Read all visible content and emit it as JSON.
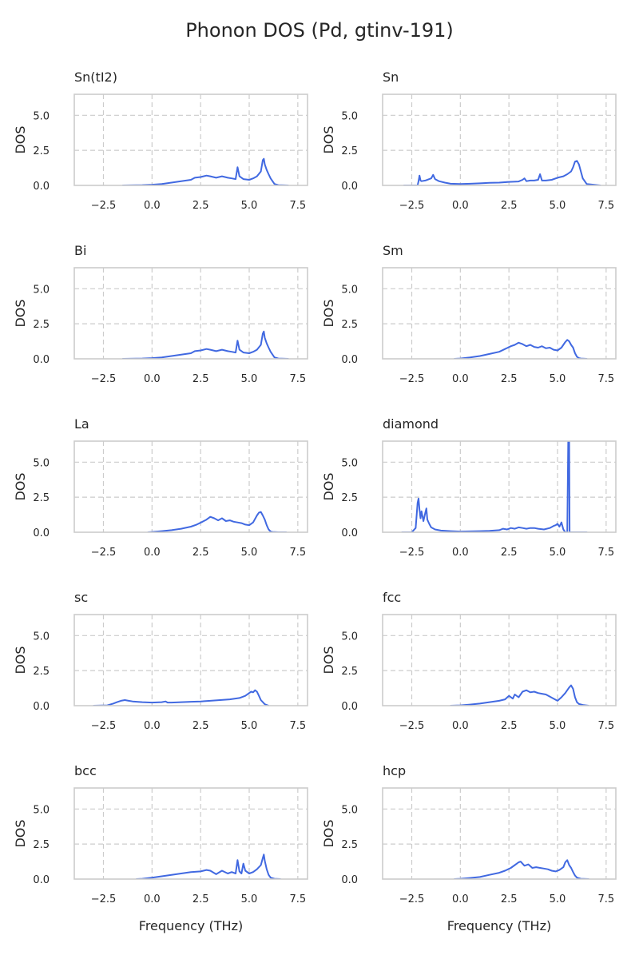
{
  "figure": {
    "title": "Phonon DOS (Pd, gtinv-191)"
  },
  "style": {
    "line_color": "#4169e1",
    "grid_color": "#cccccc",
    "frame_color": "#cccccc",
    "text_color": "#262626"
  },
  "chart_data": [
    {
      "type": "line",
      "title": "Sn(tI2)",
      "xlabel": "",
      "ylabel": "DOS",
      "xlim": [
        -4.0,
        8.0
      ],
      "ylim": [
        0,
        6.5
      ],
      "xticks": [
        -2.5,
        0.0,
        2.5,
        5.0,
        7.5
      ],
      "xtick_labels": [
        "−2.5",
        "0.0",
        "2.5",
        "5.0",
        "7.5"
      ],
      "yticks": [
        0.0,
        2.5,
        5.0
      ],
      "ytick_labels": [
        "0.0",
        "2.5",
        "5.0"
      ],
      "grid": true,
      "series": [
        {
          "x": [
            -1.5,
            -0.5,
            0,
            0.5,
            1,
            1.5,
            2,
            2.2,
            2.5,
            2.8,
            3,
            3.3,
            3.6,
            3.9,
            4.1,
            4.3,
            4.4,
            4.5,
            4.7,
            5,
            5.2,
            5.4,
            5.6,
            5.7,
            5.75,
            5.8,
            5.9,
            6,
            6.1,
            6.2,
            6.3,
            6.5,
            7
          ],
          "y": [
            0,
            0.02,
            0.05,
            0.1,
            0.2,
            0.3,
            0.4,
            0.55,
            0.6,
            0.7,
            0.65,
            0.55,
            0.65,
            0.55,
            0.5,
            0.45,
            1.3,
            0.65,
            0.45,
            0.4,
            0.5,
            0.65,
            1.0,
            1.8,
            1.9,
            1.5,
            1.1,
            0.8,
            0.5,
            0.3,
            0.1,
            0.02,
            0
          ]
        }
      ]
    },
    {
      "type": "line",
      "title": "Sn",
      "xlabel": "",
      "ylabel": "DOS",
      "xlim": [
        -4.0,
        8.0
      ],
      "ylim": [
        0,
        6.5
      ],
      "xticks": [
        -2.5,
        0.0,
        2.5,
        5.0,
        7.5
      ],
      "xtick_labels": [
        "−2.5",
        "0.0",
        "2.5",
        "5.0",
        "7.5"
      ],
      "yticks": [
        0.0,
        2.5,
        5.0
      ],
      "ytick_labels": [
        "0.0",
        "2.5",
        "5.0"
      ],
      "grid": true,
      "series": [
        {
          "x": [
            -2.9,
            -2.2,
            -2.15,
            -2.1,
            -2.05,
            -2,
            -1.8,
            -1.5,
            -1.4,
            -1.3,
            -1.1,
            -0.8,
            -0.5,
            0,
            0.5,
            1,
            1.5,
            2,
            2.5,
            3,
            3.2,
            3.3,
            3.4,
            3.6,
            3.8,
            4,
            4.1,
            4.2,
            4.4,
            4.7,
            5,
            5.3,
            5.5,
            5.7,
            5.8,
            5.9,
            6,
            6.1,
            6.2,
            6.3,
            6.5,
            7.2
          ],
          "y": [
            0,
            0,
            0.3,
            0.7,
            0.35,
            0.3,
            0.35,
            0.5,
            0.75,
            0.45,
            0.3,
            0.2,
            0.12,
            0.1,
            0.12,
            0.15,
            0.18,
            0.2,
            0.25,
            0.28,
            0.4,
            0.5,
            0.3,
            0.35,
            0.35,
            0.4,
            0.8,
            0.35,
            0.35,
            0.4,
            0.55,
            0.65,
            0.8,
            1.0,
            1.3,
            1.7,
            1.75,
            1.5,
            1.0,
            0.5,
            0.1,
            0
          ]
        }
      ]
    },
    {
      "type": "line",
      "title": "Bi",
      "xlabel": "",
      "ylabel": "DOS",
      "xlim": [
        -4.0,
        8.0
      ],
      "ylim": [
        0,
        6.5
      ],
      "xticks": [
        -2.5,
        0.0,
        2.5,
        5.0,
        7.5
      ],
      "xtick_labels": [
        "−2.5",
        "0.0",
        "2.5",
        "5.0",
        "7.5"
      ],
      "yticks": [
        0.0,
        2.5,
        5.0
      ],
      "ytick_labels": [
        "0.0",
        "2.5",
        "5.0"
      ],
      "grid": true,
      "series": [
        {
          "x": [
            -1.5,
            -0.5,
            0,
            0.5,
            1,
            1.5,
            2,
            2.2,
            2.5,
            2.8,
            3,
            3.3,
            3.6,
            3.9,
            4.1,
            4.3,
            4.4,
            4.5,
            4.7,
            5,
            5.2,
            5.4,
            5.6,
            5.7,
            5.75,
            5.8,
            5.9,
            6,
            6.1,
            6.2,
            6.3,
            6.5,
            7
          ],
          "y": [
            0,
            0.02,
            0.05,
            0.1,
            0.2,
            0.3,
            0.4,
            0.55,
            0.6,
            0.7,
            0.65,
            0.55,
            0.65,
            0.55,
            0.5,
            0.45,
            1.3,
            0.65,
            0.45,
            0.4,
            0.5,
            0.65,
            1.0,
            1.8,
            1.95,
            1.5,
            1.1,
            0.8,
            0.5,
            0.3,
            0.1,
            0.02,
            0
          ]
        }
      ]
    },
    {
      "type": "line",
      "title": "Sm",
      "xlabel": "",
      "ylabel": "DOS",
      "xlim": [
        -4.0,
        8.0
      ],
      "ylim": [
        0,
        6.5
      ],
      "xticks": [
        -2.5,
        0.0,
        2.5,
        5.0,
        7.5
      ],
      "xtick_labels": [
        "−2.5",
        "0.0",
        "2.5",
        "5.0",
        "7.5"
      ],
      "yticks": [
        0.0,
        2.5,
        5.0
      ],
      "ytick_labels": [
        "0.0",
        "2.5",
        "5.0"
      ],
      "grid": true,
      "series": [
        {
          "x": [
            -0.3,
            0,
            0.5,
            1,
            1.5,
            2,
            2.3,
            2.6,
            2.8,
            3,
            3.2,
            3.4,
            3.6,
            3.8,
            4,
            4.2,
            4.4,
            4.6,
            4.8,
            5,
            5.2,
            5.4,
            5.5,
            5.6,
            5.7,
            5.8,
            5.9,
            6,
            6.1,
            6.2,
            6.5
          ],
          "y": [
            0,
            0.02,
            0.1,
            0.2,
            0.35,
            0.5,
            0.7,
            0.9,
            1.0,
            1.15,
            1.05,
            0.9,
            1.0,
            0.85,
            0.8,
            0.9,
            0.75,
            0.8,
            0.65,
            0.6,
            0.8,
            1.2,
            1.35,
            1.25,
            1.0,
            0.8,
            0.4,
            0.15,
            0.05,
            0.02,
            0
          ]
        }
      ]
    },
    {
      "type": "line",
      "title": "La",
      "xlabel": "",
      "ylabel": "DOS",
      "xlim": [
        -4.0,
        8.0
      ],
      "ylim": [
        0,
        6.5
      ],
      "xticks": [
        -2.5,
        0.0,
        2.5,
        5.0,
        7.5
      ],
      "xtick_labels": [
        "−2.5",
        "0.0",
        "2.5",
        "5.0",
        "7.5"
      ],
      "yticks": [
        0.0,
        2.5,
        5.0
      ],
      "ytick_labels": [
        "0.0",
        "2.5",
        "5.0"
      ],
      "grid": true,
      "series": [
        {
          "x": [
            -0.2,
            0,
            0.5,
            1,
            1.5,
            2,
            2.3,
            2.6,
            2.8,
            3,
            3.2,
            3.4,
            3.6,
            3.8,
            4,
            4.2,
            4.4,
            4.6,
            4.8,
            5,
            5.2,
            5.4,
            5.5,
            5.6,
            5.7,
            5.8,
            5.9,
            6,
            6.1,
            6.2,
            6.5,
            6.9
          ],
          "y": [
            0,
            0.02,
            0.08,
            0.15,
            0.25,
            0.4,
            0.55,
            0.75,
            0.9,
            1.1,
            1.0,
            0.85,
            1.0,
            0.8,
            0.85,
            0.75,
            0.7,
            0.65,
            0.55,
            0.5,
            0.7,
            1.2,
            1.4,
            1.45,
            1.2,
            0.9,
            0.5,
            0.2,
            0.05,
            0.02,
            0,
            0
          ]
        }
      ]
    },
    {
      "type": "line",
      "title": "diamond",
      "xlabel": "",
      "ylabel": "DOS",
      "xlim": [
        -4.0,
        8.0
      ],
      "ylim": [
        0,
        6.5
      ],
      "xticks": [
        -2.5,
        0.0,
        2.5,
        5.0,
        7.5
      ],
      "xtick_labels": [
        "−2.5",
        "0.0",
        "2.5",
        "5.0",
        "7.5"
      ],
      "yticks": [
        0.0,
        2.5,
        5.0
      ],
      "ytick_labels": [
        "0.0",
        "2.5",
        "5.0"
      ],
      "grid": true,
      "series": [
        {
          "x": [
            -3,
            -2.5,
            -2.3,
            -2.25,
            -2.2,
            -2.15,
            -2.1,
            -2.05,
            -2,
            -1.9,
            -1.8,
            -1.75,
            -1.7,
            -1.6,
            -1.5,
            -1.3,
            -1,
            -0.5,
            0,
            0.5,
            1,
            1.5,
            2,
            2.2,
            2.4,
            2.6,
            2.8,
            3,
            3.2,
            3.4,
            3.6,
            3.8,
            4,
            4.3,
            4.6,
            4.8,
            4.9,
            5,
            5.1,
            5.2,
            5.3,
            5.4,
            5.5,
            5.55,
            5.6,
            5.62,
            5.7,
            5.8,
            6,
            6.5
          ],
          "y": [
            0,
            0,
            0.3,
            1.2,
            2.1,
            2.4,
            1.6,
            1.0,
            1.5,
            0.8,
            1.4,
            1.7,
            0.9,
            0.6,
            0.35,
            0.2,
            0.12,
            0.08,
            0.05,
            0.06,
            0.08,
            0.1,
            0.15,
            0.25,
            0.2,
            0.3,
            0.25,
            0.35,
            0.3,
            0.25,
            0.3,
            0.3,
            0.25,
            0.2,
            0.3,
            0.45,
            0.5,
            0.6,
            0.4,
            0.7,
            0.2,
            0.0,
            0.0,
            6.5,
            6.5,
            0.0,
            0.0,
            0.0,
            0.0,
            0
          ]
        }
      ]
    },
    {
      "type": "line",
      "title": "sc",
      "xlabel": "",
      "ylabel": "DOS",
      "xlim": [
        -4.0,
        8.0
      ],
      "ylim": [
        0,
        6.5
      ],
      "xticks": [
        -2.5,
        0.0,
        2.5,
        5.0,
        7.5
      ],
      "xtick_labels": [
        "−2.5",
        "0.0",
        "2.5",
        "5.0",
        "7.5"
      ],
      "yticks": [
        0.0,
        2.5,
        5.0
      ],
      "ytick_labels": [
        "0.0",
        "2.5",
        "5.0"
      ],
      "grid": true,
      "series": [
        {
          "x": [
            -3,
            -2.3,
            -2,
            -1.8,
            -1.6,
            -1.4,
            -1.2,
            -1,
            -0.5,
            0,
            0.5,
            0.7,
            0.8,
            1,
            1.5,
            2,
            2.5,
            3,
            3.5,
            4,
            4.5,
            4.8,
            5,
            5.1,
            5.2,
            5.3,
            5.4,
            5.5,
            5.6,
            5.8,
            6
          ],
          "y": [
            0,
            0.02,
            0.15,
            0.25,
            0.35,
            0.4,
            0.35,
            0.3,
            0.25,
            0.22,
            0.25,
            0.3,
            0.22,
            0.22,
            0.25,
            0.28,
            0.3,
            0.35,
            0.4,
            0.45,
            0.55,
            0.7,
            0.9,
            1.0,
            0.95,
            1.1,
            1.0,
            0.7,
            0.4,
            0.1,
            0
          ]
        }
      ]
    },
    {
      "type": "line",
      "title": "fcc",
      "xlabel": "",
      "ylabel": "DOS",
      "xlim": [
        -4.0,
        8.0
      ],
      "ylim": [
        0,
        6.5
      ],
      "xticks": [
        -2.5,
        0.0,
        2.5,
        5.0,
        7.5
      ],
      "xtick_labels": [
        "−2.5",
        "0.0",
        "2.5",
        "5.0",
        "7.5"
      ],
      "yticks": [
        0.0,
        2.5,
        5.0
      ],
      "ytick_labels": [
        "0.0",
        "2.5",
        "5.0"
      ],
      "grid": true,
      "series": [
        {
          "x": [
            -0.5,
            0,
            0.5,
            1,
            1.5,
            2,
            2.3,
            2.5,
            2.7,
            2.8,
            3,
            3.2,
            3.4,
            3.6,
            3.8,
            4,
            4.2,
            4.4,
            4.6,
            4.8,
            5,
            5.2,
            5.4,
            5.6,
            5.7,
            5.8,
            5.9,
            6,
            6.1,
            6.3,
            6.6
          ],
          "y": [
            0,
            0.02,
            0.08,
            0.15,
            0.25,
            0.35,
            0.45,
            0.7,
            0.5,
            0.8,
            0.6,
            1.0,
            1.1,
            0.95,
            1.0,
            0.9,
            0.85,
            0.8,
            0.65,
            0.5,
            0.35,
            0.6,
            0.9,
            1.3,
            1.45,
            1.2,
            0.6,
            0.25,
            0.12,
            0.05,
            0
          ]
        }
      ]
    },
    {
      "type": "line",
      "title": "bcc",
      "xlabel": "",
      "ylabel": "DOS",
      "xlim": [
        -4.0,
        8.0
      ],
      "ylim": [
        0,
        6.5
      ],
      "xticks": [
        -2.5,
        0.0,
        2.5,
        5.0,
        7.5
      ],
      "xtick_labels": [
        "−2.5",
        "0.0",
        "2.5",
        "5.0",
        "7.5"
      ],
      "yticks": [
        0.0,
        2.5,
        5.0
      ],
      "ytick_labels": [
        "0.0",
        "2.5",
        "5.0"
      ],
      "grid": true,
      "series": [
        {
          "x": [
            -0.8,
            -0.5,
            0,
            0.5,
            1,
            1.5,
            2,
            2.5,
            2.8,
            3,
            3.3,
            3.6,
            3.9,
            4.1,
            4.3,
            4.4,
            4.5,
            4.6,
            4.7,
            4.8,
            5,
            5.2,
            5.4,
            5.6,
            5.7,
            5.75,
            5.8,
            5.9,
            6,
            6.1,
            6.3,
            6.6
          ],
          "y": [
            0,
            0.02,
            0.1,
            0.2,
            0.3,
            0.4,
            0.5,
            0.55,
            0.65,
            0.6,
            0.35,
            0.6,
            0.4,
            0.5,
            0.4,
            1.35,
            0.55,
            0.4,
            1.1,
            0.6,
            0.4,
            0.5,
            0.7,
            1.0,
            1.5,
            1.75,
            1.3,
            0.7,
            0.3,
            0.1,
            0.02,
            0
          ]
        }
      ]
    },
    {
      "type": "line",
      "title": "hcp",
      "xlabel": "",
      "ylabel": "DOS",
      "xlim": [
        -4.0,
        8.0
      ],
      "ylim": [
        0,
        6.5
      ],
      "xticks": [
        -2.5,
        0.0,
        2.5,
        5.0,
        7.5
      ],
      "xtick_labels": [
        "−2.5",
        "0.0",
        "2.5",
        "5.0",
        "7.5"
      ],
      "yticks": [
        0.0,
        2.5,
        5.0
      ],
      "ytick_labels": [
        "0.0",
        "2.5",
        "5.0"
      ],
      "grid": true,
      "series": [
        {
          "x": [
            -0.3,
            0,
            0.5,
            1,
            1.5,
            2,
            2.3,
            2.6,
            2.8,
            3,
            3.1,
            3.3,
            3.5,
            3.7,
            3.9,
            4.1,
            4.3,
            4.5,
            4.7,
            4.9,
            5.1,
            5.3,
            5.4,
            5.5,
            5.6,
            5.7,
            5.8,
            5.9,
            6,
            6.2,
            6.6
          ],
          "y": [
            0,
            0.02,
            0.08,
            0.15,
            0.3,
            0.45,
            0.6,
            0.8,
            1.0,
            1.2,
            1.25,
            0.95,
            1.05,
            0.8,
            0.85,
            0.8,
            0.75,
            0.7,
            0.6,
            0.55,
            0.65,
            0.85,
            1.2,
            1.35,
            1.0,
            0.8,
            0.5,
            0.25,
            0.1,
            0.02,
            0
          ]
        }
      ]
    }
  ]
}
